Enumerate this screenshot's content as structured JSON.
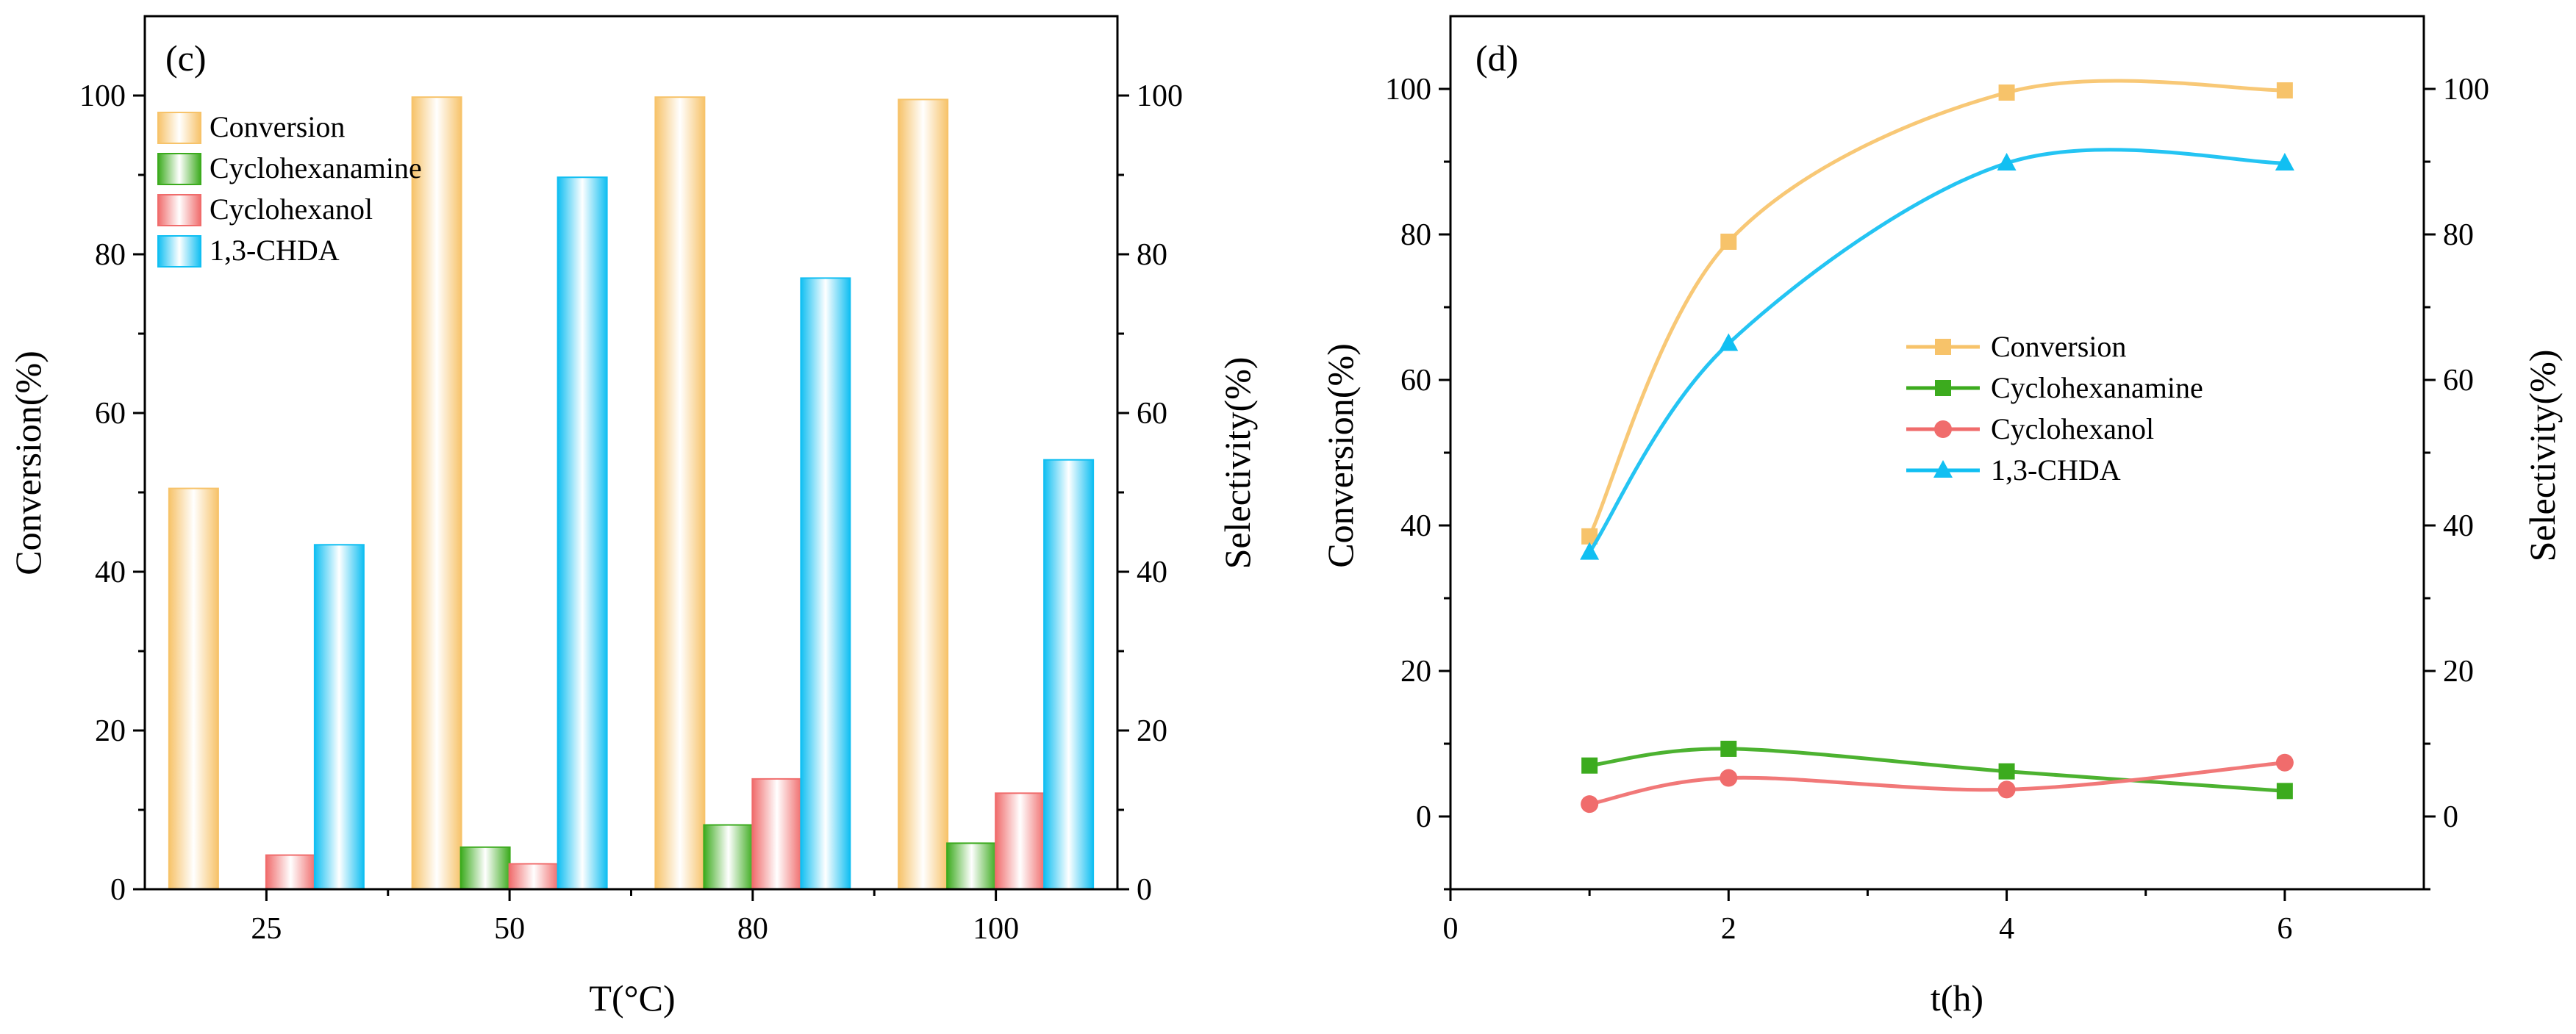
{
  "colors": {
    "Conversion": "#f7c36a",
    "Cyclohexanamine": "#3cab1e",
    "Cyclohexanol": "#f06c6c",
    "1,3-CHDA": "#11bff2"
  },
  "chart_data": [
    {
      "type": "bar",
      "panel_label": "(c)",
      "xlabel": "T(°C)",
      "ylabel": "Conversion(%)",
      "ylabel_right": "Selectivity(%)",
      "ylim": [
        0,
        110
      ],
      "ylim_right": [
        0,
        110
      ],
      "yticks": [
        0,
        20,
        40,
        60,
        80,
        100
      ],
      "yticks_right": [
        0,
        20,
        40,
        60,
        80,
        100
      ],
      "categories": [
        "25",
        "50",
        "80",
        "100"
      ],
      "legend_position": "top-left",
      "series": [
        {
          "name": "Conversion",
          "axis": "left",
          "values": [
            50.5,
            99.8,
            99.8,
            99.5
          ]
        },
        {
          "name": "Cyclohexanamine",
          "axis": "right",
          "values": [
            0,
            5.3,
            8.1,
            5.8
          ]
        },
        {
          "name": "Cyclohexanol",
          "axis": "right",
          "values": [
            4.3,
            3.2,
            13.9,
            12.1
          ]
        },
        {
          "name": "1,3-CHDA",
          "axis": "right",
          "values": [
            43.4,
            89.7,
            77,
            54.1
          ]
        }
      ]
    },
    {
      "type": "line",
      "panel_label": "(d)",
      "xlabel": "t(h)",
      "ylabel": "Conversion(%)",
      "ylabel_right": "Selectivity(%)",
      "xlim": [
        0,
        7
      ],
      "xticks": [
        0,
        2,
        4,
        6
      ],
      "ylim": [
        -10,
        110
      ],
      "ylim_right": [
        -10,
        110
      ],
      "yticks": [
        0,
        20,
        40,
        60,
        80,
        100
      ],
      "yticks_right": [
        0,
        20,
        40,
        60,
        80,
        100
      ],
      "legend_position": "center",
      "series": [
        {
          "name": "Conversion",
          "axis": "left",
          "marker": "square",
          "x": [
            1,
            2,
            4,
            6
          ],
          "values": [
            38.5,
            79,
            99.5,
            99.8
          ]
        },
        {
          "name": "Cyclohexanamine",
          "axis": "right",
          "marker": "square",
          "x": [
            1,
            2,
            4,
            6
          ],
          "values": [
            7,
            9.3,
            6.2,
            3.5
          ]
        },
        {
          "name": "Cyclohexanol",
          "axis": "right",
          "marker": "circle",
          "x": [
            1,
            2,
            4,
            6
          ],
          "values": [
            1.7,
            5.3,
            3.7,
            7.4
          ]
        },
        {
          "name": "1,3-CHDA",
          "axis": "right",
          "marker": "triangle",
          "x": [
            1,
            2,
            4,
            6
          ],
          "values": [
            36.3,
            65,
            89.8,
            89.8
          ]
        }
      ]
    }
  ]
}
